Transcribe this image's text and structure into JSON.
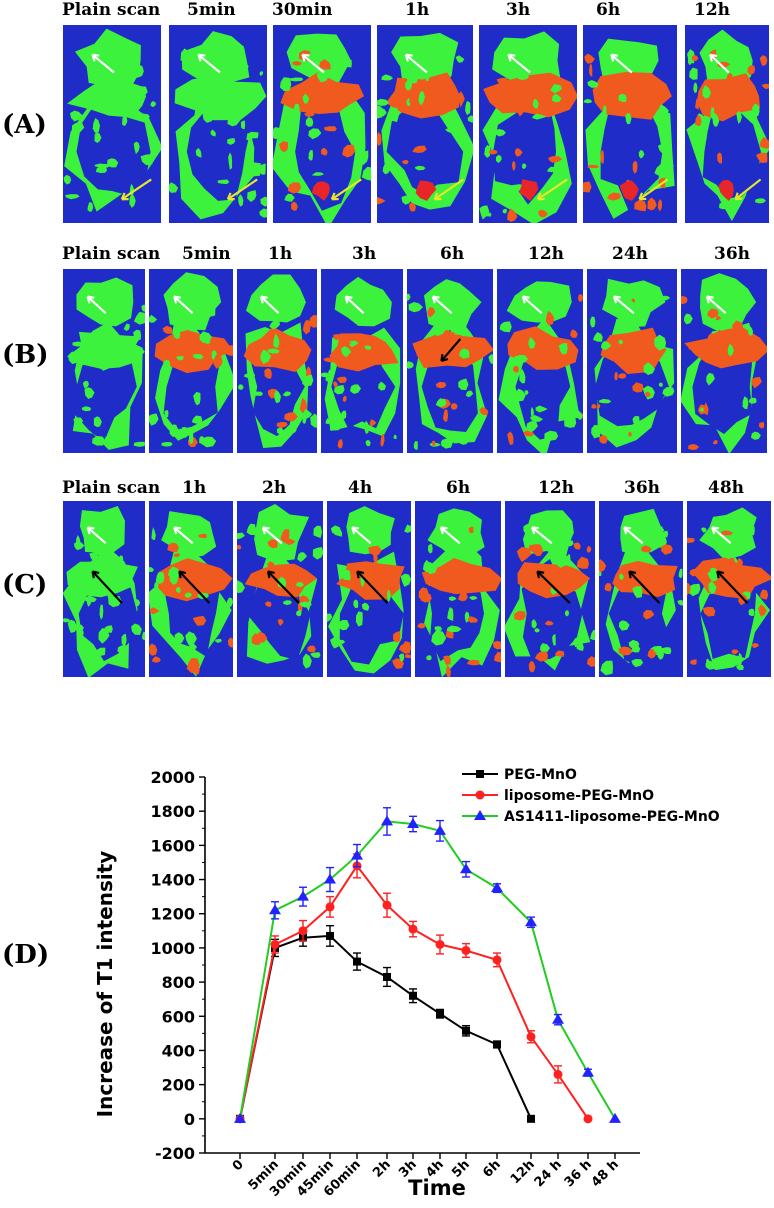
{
  "panels": {
    "A": {
      "letter": "(A)",
      "labels": [
        "Plain scan",
        "5min",
        "30min",
        "1h",
        "3h",
        "6h",
        "12h"
      ]
    },
    "B": {
      "letter": "(B)",
      "labels": [
        "Plain scan",
        "5min",
        "1h",
        "3h",
        "6h",
        "12h",
        "24h",
        "36h"
      ]
    },
    "C": {
      "letter": "(C)",
      "labels": [
        "Plain scan",
        "1h",
        "2h",
        "4h",
        "6h",
        "12h",
        "36h",
        "48h"
      ]
    },
    "D": {
      "letter": "(D)"
    }
  },
  "colors": {
    "scan_bg": "#1f2cc8",
    "tissue_green": "#3cf23c",
    "tissue_orange": "#f05a1e",
    "tissue_red": "#e8262a",
    "arrow_white": "#ffffff",
    "arrow_yellow": "#e6e62a",
    "arrow_black": "#000000"
  },
  "chart_data": {
    "type": "line",
    "xlabel": "Time",
    "ylabel": "Increase of T1 intensity",
    "ylim": [
      -200,
      2000
    ],
    "yticks": [
      -200,
      0,
      200,
      400,
      600,
      800,
      1000,
      1200,
      1400,
      1600,
      1800,
      2000
    ],
    "categories": [
      "0",
      "5min",
      "30min",
      "45min",
      "60min",
      "2h",
      "3h",
      "4h",
      "5h",
      "6h",
      "12h",
      "24 h",
      "36 h",
      "48 h"
    ],
    "legend_position": "top-right",
    "series": [
      {
        "name": "PEG-MnO",
        "color": "#000000",
        "marker": "square",
        "values": [
          0,
          1000,
          1060,
          1070,
          920,
          830,
          720,
          615,
          515,
          435,
          0,
          null,
          null,
          null
        ],
        "errors": [
          0,
          50,
          50,
          60,
          50,
          55,
          40,
          25,
          30,
          20,
          0,
          0,
          0,
          0
        ]
      },
      {
        "name": "liposome-PEG-MnO",
        "color": "#ff2020",
        "marker": "circle",
        "values": [
          0,
          1020,
          1100,
          1240,
          1480,
          1250,
          1110,
          1020,
          985,
          930,
          480,
          260,
          0,
          null
        ],
        "errors": [
          0,
          50,
          60,
          60,
          70,
          70,
          45,
          55,
          40,
          40,
          35,
          50,
          0,
          0
        ]
      },
      {
        "name": "AS1411-liposome-PEG-MnO",
        "color": "#22cc22",
        "marker_color": "#2222ff",
        "marker": "triangle",
        "values": [
          0,
          1220,
          1300,
          1400,
          1540,
          1740,
          1725,
          1685,
          1460,
          1350,
          1150,
          580,
          270,
          0
        ],
        "errors": [
          0,
          50,
          55,
          70,
          65,
          80,
          45,
          60,
          45,
          25,
          30,
          30,
          20,
          0
        ]
      }
    ]
  }
}
